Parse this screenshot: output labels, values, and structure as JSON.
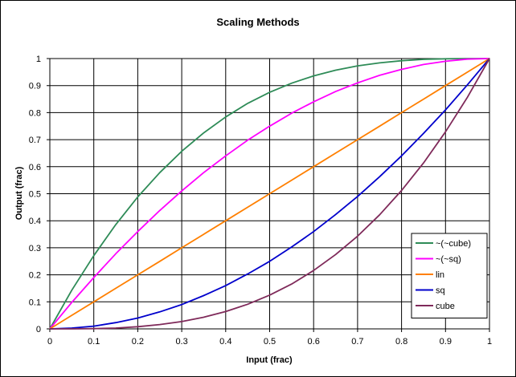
{
  "chart_data": {
    "type": "line",
    "title": "Scaling Methods",
    "xlabel": "Input (frac)",
    "ylabel": "Output (frac)",
    "xlim": [
      0,
      1
    ],
    "ylim": [
      0,
      1
    ],
    "x_ticks": [
      "0",
      "0.1",
      "0.2",
      "0.3",
      "0.4",
      "0.5",
      "0.6",
      "0.7",
      "0.8",
      "0.9",
      "1"
    ],
    "y_ticks": [
      "0",
      "0.1",
      "0.2",
      "0.3",
      "0.4",
      "0.5",
      "0.6",
      "0.7",
      "0.8",
      "0.9",
      "1"
    ],
    "grid": true,
    "legend_position": "bottom-right",
    "x": [
      0,
      0.05,
      0.1,
      0.15,
      0.2,
      0.25,
      0.3,
      0.35,
      0.4,
      0.45,
      0.5,
      0.55,
      0.6,
      0.65,
      0.7,
      0.75,
      0.8,
      0.85,
      0.9,
      0.95,
      1
    ],
    "series": [
      {
        "name": "~(~cube)",
        "color": "#2e8b57",
        "values": [
          0,
          0.143,
          0.271,
          0.386,
          0.488,
          0.578,
          0.657,
          0.725,
          0.784,
          0.834,
          0.875,
          0.909,
          0.936,
          0.957,
          0.973,
          0.984,
          0.992,
          0.997,
          0.999,
          1.0,
          1.0
        ]
      },
      {
        "name": "~(~sq)",
        "color": "#ff00ff",
        "values": [
          0,
          0.098,
          0.19,
          0.278,
          0.36,
          0.438,
          0.51,
          0.578,
          0.64,
          0.698,
          0.75,
          0.798,
          0.84,
          0.878,
          0.91,
          0.938,
          0.96,
          0.978,
          0.99,
          0.998,
          1.0
        ]
      },
      {
        "name": "lin",
        "color": "#ff7f00",
        "values": [
          0,
          0.05,
          0.1,
          0.15,
          0.2,
          0.25,
          0.3,
          0.35,
          0.4,
          0.45,
          0.5,
          0.55,
          0.6,
          0.65,
          0.7,
          0.75,
          0.8,
          0.85,
          0.9,
          0.95,
          1.0
        ]
      },
      {
        "name": "sq",
        "color": "#0000cc",
        "values": [
          0,
          0.003,
          0.01,
          0.023,
          0.04,
          0.063,
          0.09,
          0.123,
          0.16,
          0.203,
          0.25,
          0.303,
          0.36,
          0.423,
          0.49,
          0.563,
          0.64,
          0.723,
          0.81,
          0.903,
          1.0
        ]
      },
      {
        "name": "cube",
        "color": "#7f2a5a",
        "values": [
          0,
          0.0001,
          0.001,
          0.003,
          0.008,
          0.016,
          0.027,
          0.043,
          0.064,
          0.091,
          0.125,
          0.166,
          0.216,
          0.275,
          0.343,
          0.422,
          0.512,
          0.614,
          0.729,
          0.857,
          1.0
        ]
      }
    ]
  }
}
